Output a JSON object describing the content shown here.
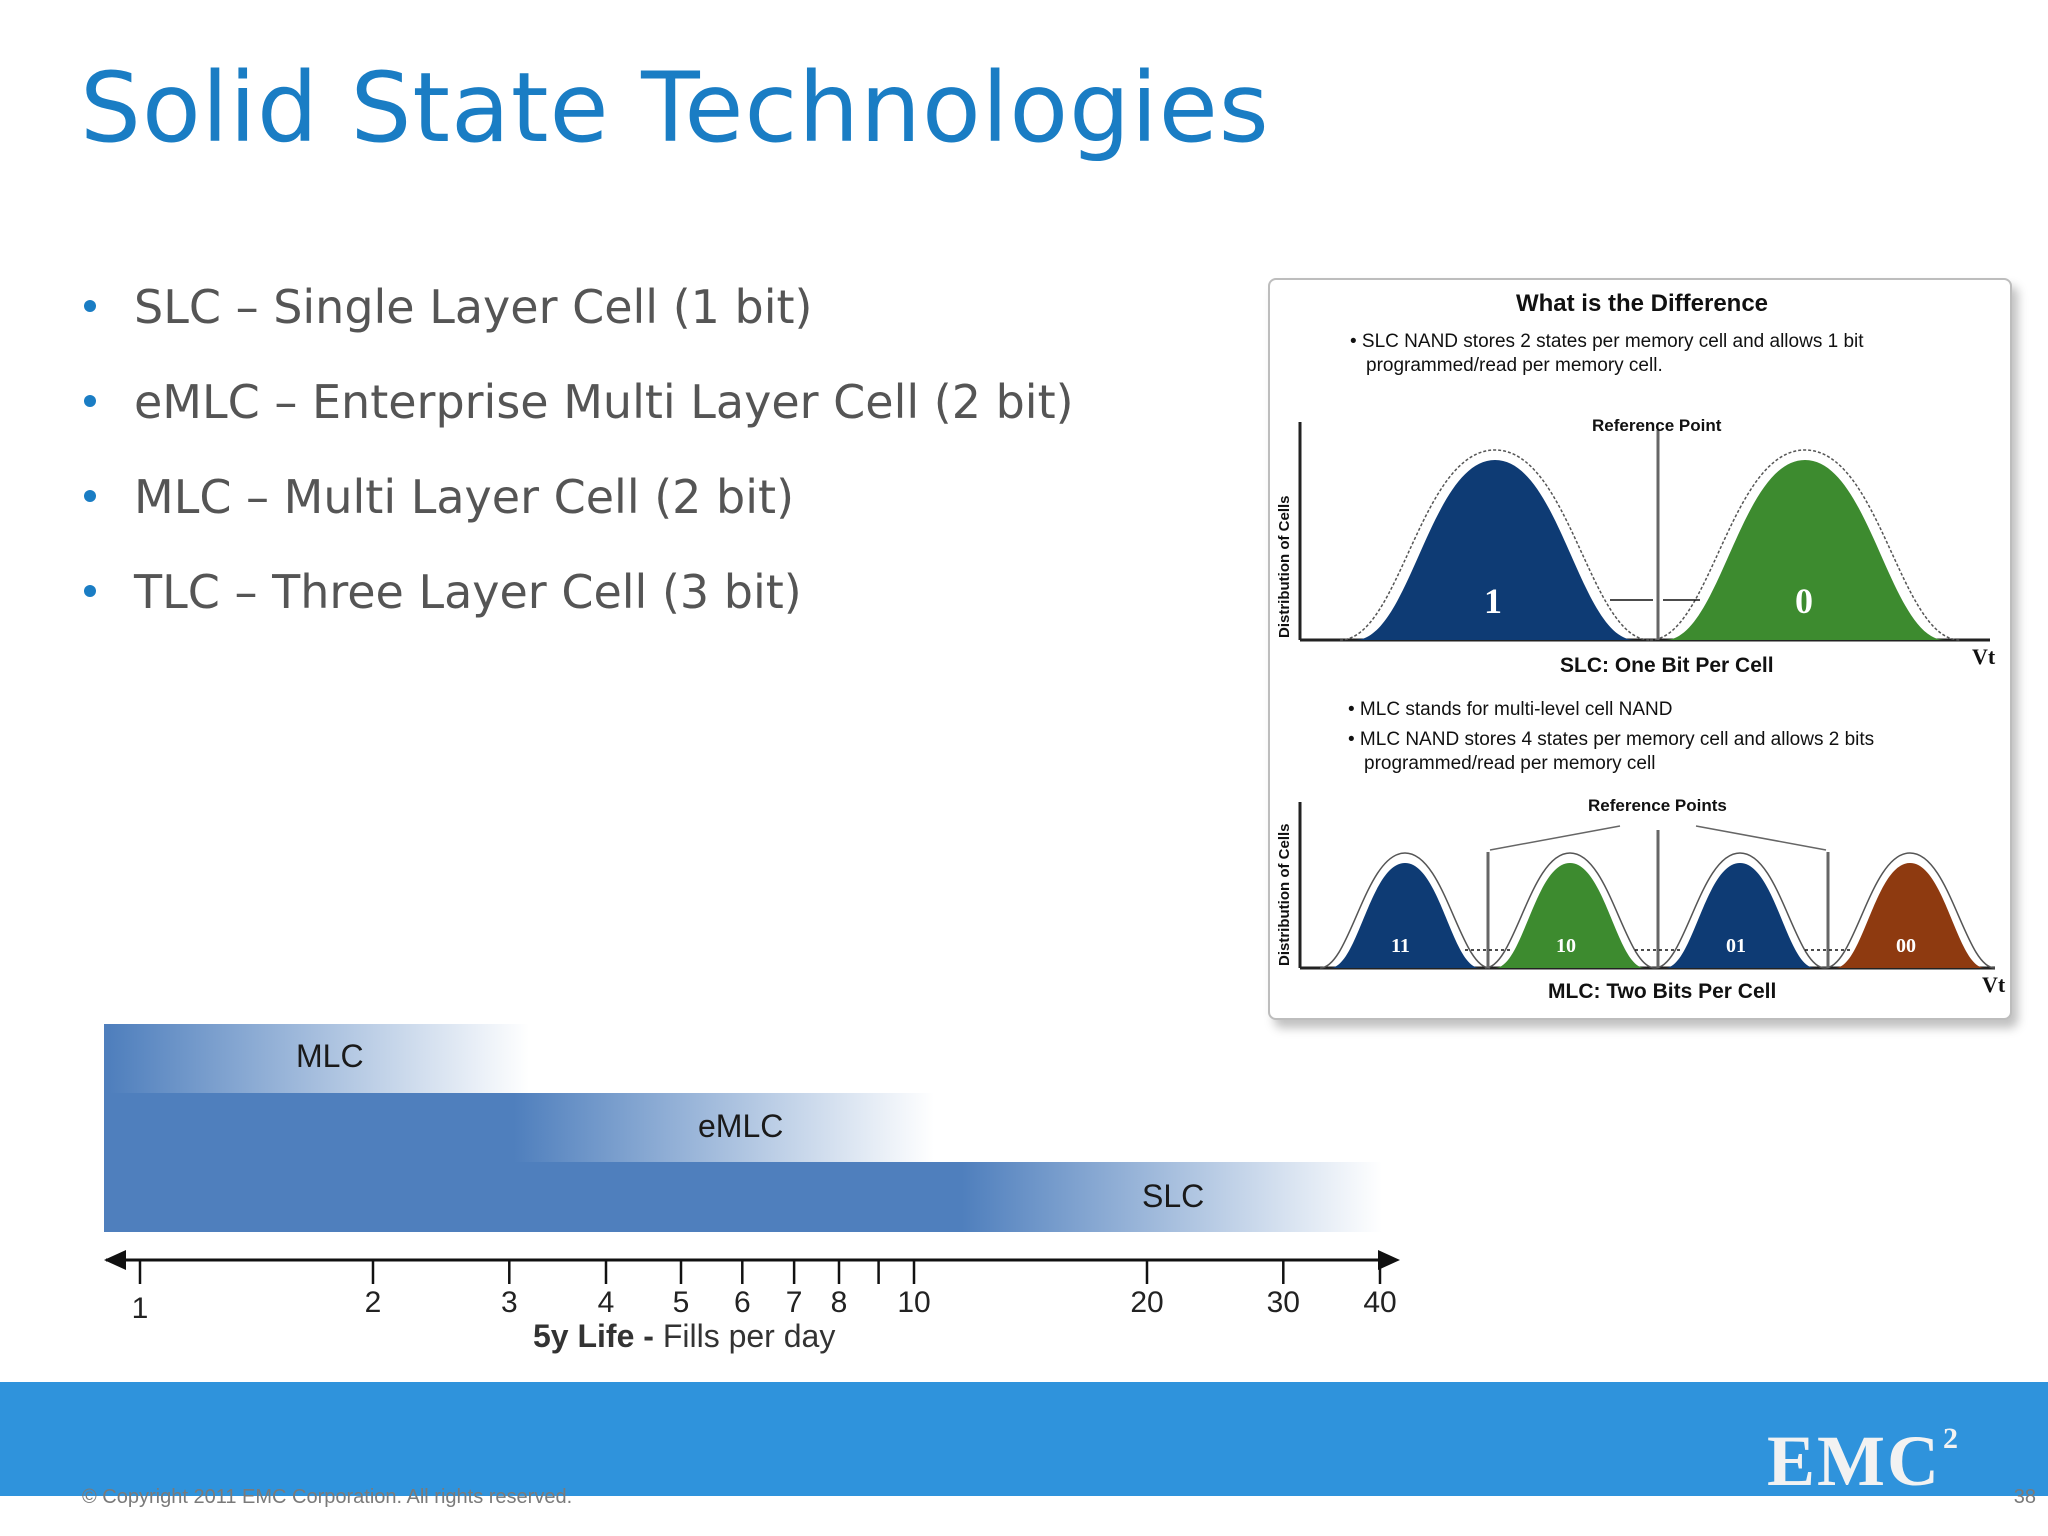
{
  "slide": {
    "title": "Solid State Technologies",
    "bullets": [
      "SLC – Single Layer Cell (1 bit)",
      "eMLC – Enterprise Multi Layer Cell (2 bit)",
      "MLC – Multi Layer Cell (2 bit)",
      "TLC – Three Layer Cell (3 bit)"
    ],
    "copyright": "© Copyright 2011 EMC Corporation. All rights reserved.",
    "page_number": "38",
    "logo": {
      "text": "EMC",
      "superscript": "2"
    },
    "colors": {
      "title": "#1a7dc4",
      "footer": "#2f93dc",
      "band": "#4f7fbd"
    }
  },
  "diagram": {
    "heading": "What is the Difference",
    "slc_bullet_line1": "• SLC NAND stores 2 states per memory cell and allows 1 bit",
    "slc_bullet_line2": "programmed/read per memory cell.",
    "slc_reference_label": "Reference Point",
    "slc_y_label": "Distribution of Cells",
    "slc_x_label": "Vt",
    "slc_caption": "SLC: One Bit Per Cell",
    "slc_states": [
      {
        "label": "1",
        "color": "#0e3b74"
      },
      {
        "label": "0",
        "color": "#3d8b2f"
      }
    ],
    "mlc_bullet1": "• MLC stands for multi-level cell NAND",
    "mlc_bullet2_line1": "• MLC NAND stores 4 states per memory cell and allows 2 bits",
    "mlc_bullet2_line2": "programmed/read per memory cell",
    "mlc_reference_label": "Reference Points",
    "mlc_y_label": "Distribution of Cells",
    "mlc_x_label": "Vt",
    "mlc_caption": "MLC: Two Bits Per Cell",
    "mlc_states": [
      {
        "label": "11",
        "color": "#0e3b74"
      },
      {
        "label": "10",
        "color": "#3d8b2f"
      },
      {
        "label": "01",
        "color": "#0e3b74"
      },
      {
        "label": "00",
        "color": "#8e3a10"
      }
    ]
  },
  "endurance_chart": {
    "bands": [
      {
        "label": "MLC",
        "range_end_fills_per_day": 3
      },
      {
        "label": "eMLC",
        "range_end_fills_per_day": 10
      },
      {
        "label": "SLC",
        "range_end_fills_per_day": 40
      }
    ],
    "ticks": [
      1,
      2,
      3,
      4,
      5,
      6,
      7,
      8,
      9,
      10,
      20,
      30,
      40
    ],
    "tick_labels": [
      "1",
      "2",
      "3",
      "4",
      "5",
      "6",
      "7",
      "8",
      "",
      "10",
      "20",
      "30",
      "40"
    ],
    "axis_caption_bold": "5y Life -",
    "axis_caption": "Fills per day",
    "scale": "log"
  }
}
